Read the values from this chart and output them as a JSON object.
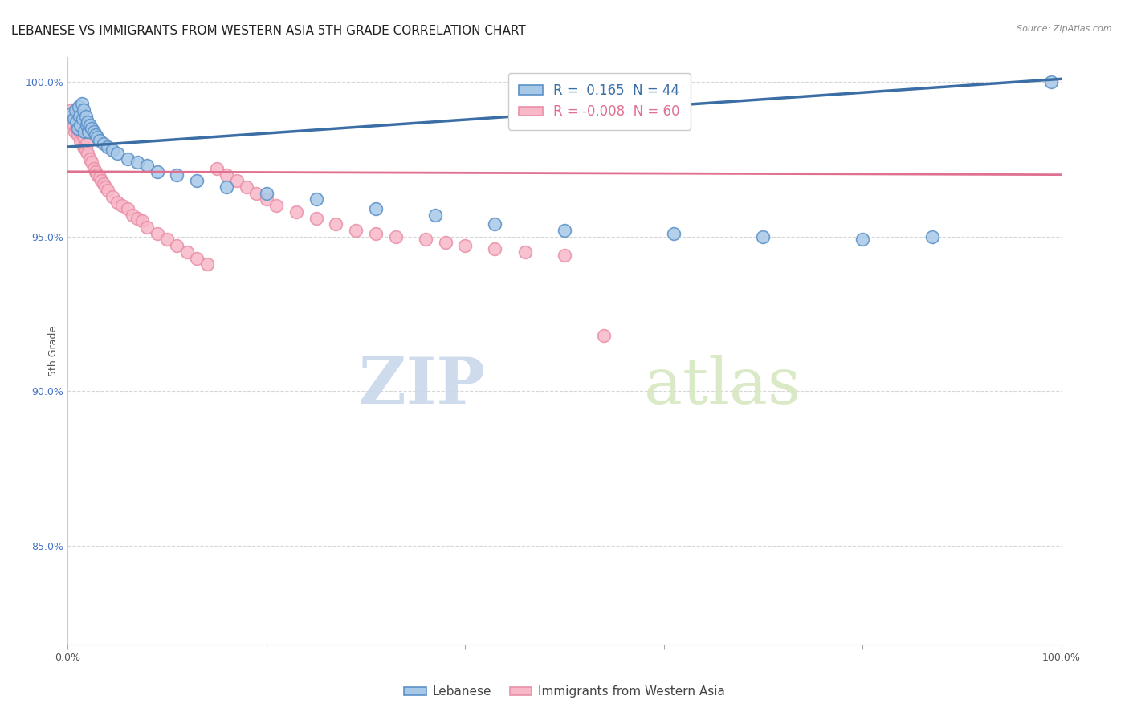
{
  "title": "LEBANESE VS IMMIGRANTS FROM WESTERN ASIA 5TH GRADE CORRELATION CHART",
  "source": "Source: ZipAtlas.com",
  "ylabel": "5th Grade",
  "xlim": [
    0.0,
    1.0
  ],
  "ylim": [
    0.818,
    1.008
  ],
  "yticks": [
    0.85,
    0.9,
    0.95,
    1.0
  ],
  "ytick_labels": [
    "85.0%",
    "90.0%",
    "95.0%",
    "100.0%"
  ],
  "R_blue": 0.165,
  "N_blue": 44,
  "R_pink": -0.008,
  "N_pink": 60,
  "blue_color": "#a8c8e8",
  "pink_color": "#f8b8c8",
  "blue_line_color": "#3a6ea5",
  "pink_line_color": "#e07090",
  "blue_edge_color": "#5a90c8",
  "pink_edge_color": "#e890a8",
  "watermark_zip": "ZIP",
  "watermark_atlas": "atlas",
  "background_color": "#ffffff",
  "grid_color": "#cccccc",
  "title_fontsize": 11,
  "axis_fontsize": 9,
  "right_tick_color": "#4472c4",
  "blue_scatter_x": [
    0.004,
    0.006,
    0.008,
    0.009,
    0.01,
    0.011,
    0.012,
    0.013,
    0.014,
    0.015,
    0.016,
    0.017,
    0.018,
    0.019,
    0.02,
    0.021,
    0.022,
    0.024,
    0.026,
    0.028,
    0.03,
    0.032,
    0.036,
    0.04,
    0.045,
    0.05,
    0.06,
    0.07,
    0.08,
    0.09,
    0.11,
    0.13,
    0.16,
    0.2,
    0.25,
    0.31,
    0.37,
    0.43,
    0.5,
    0.61,
    0.7,
    0.8,
    0.87,
    0.99
  ],
  "blue_scatter_y": [
    0.99,
    0.988,
    0.991,
    0.987,
    0.985,
    0.992,
    0.989,
    0.986,
    0.993,
    0.988,
    0.991,
    0.984,
    0.989,
    0.986,
    0.987,
    0.984,
    0.986,
    0.985,
    0.984,
    0.983,
    0.982,
    0.981,
    0.98,
    0.979,
    0.978,
    0.977,
    0.975,
    0.974,
    0.973,
    0.971,
    0.97,
    0.968,
    0.966,
    0.964,
    0.962,
    0.959,
    0.957,
    0.954,
    0.952,
    0.951,
    0.95,
    0.949,
    0.95,
    1.0
  ],
  "pink_scatter_x": [
    0.004,
    0.006,
    0.007,
    0.008,
    0.009,
    0.01,
    0.011,
    0.012,
    0.013,
    0.014,
    0.015,
    0.016,
    0.017,
    0.018,
    0.019,
    0.02,
    0.022,
    0.024,
    0.026,
    0.028,
    0.03,
    0.032,
    0.034,
    0.036,
    0.038,
    0.04,
    0.045,
    0.05,
    0.055,
    0.06,
    0.065,
    0.07,
    0.075,
    0.08,
    0.09,
    0.1,
    0.11,
    0.12,
    0.13,
    0.14,
    0.15,
    0.16,
    0.17,
    0.18,
    0.19,
    0.2,
    0.21,
    0.23,
    0.25,
    0.27,
    0.29,
    0.31,
    0.33,
    0.36,
    0.38,
    0.4,
    0.43,
    0.46,
    0.5,
    0.54
  ],
  "pink_scatter_y": [
    0.991,
    0.986,
    0.984,
    0.988,
    0.985,
    0.983,
    0.987,
    0.984,
    0.981,
    0.986,
    0.983,
    0.979,
    0.982,
    0.978,
    0.98,
    0.977,
    0.975,
    0.974,
    0.972,
    0.971,
    0.97,
    0.969,
    0.968,
    0.967,
    0.966,
    0.965,
    0.963,
    0.961,
    0.96,
    0.959,
    0.957,
    0.956,
    0.955,
    0.953,
    0.951,
    0.949,
    0.947,
    0.945,
    0.943,
    0.941,
    0.972,
    0.97,
    0.968,
    0.966,
    0.964,
    0.962,
    0.96,
    0.958,
    0.956,
    0.954,
    0.952,
    0.951,
    0.95,
    0.949,
    0.948,
    0.947,
    0.946,
    0.945,
    0.944,
    0.918
  ],
  "blue_trendline_x": [
    0.0,
    1.0
  ],
  "blue_trendline_y": [
    0.979,
    1.001
  ],
  "pink_trendline_x": [
    0.0,
    1.0
  ],
  "pink_trendline_y": [
    0.971,
    0.97
  ]
}
